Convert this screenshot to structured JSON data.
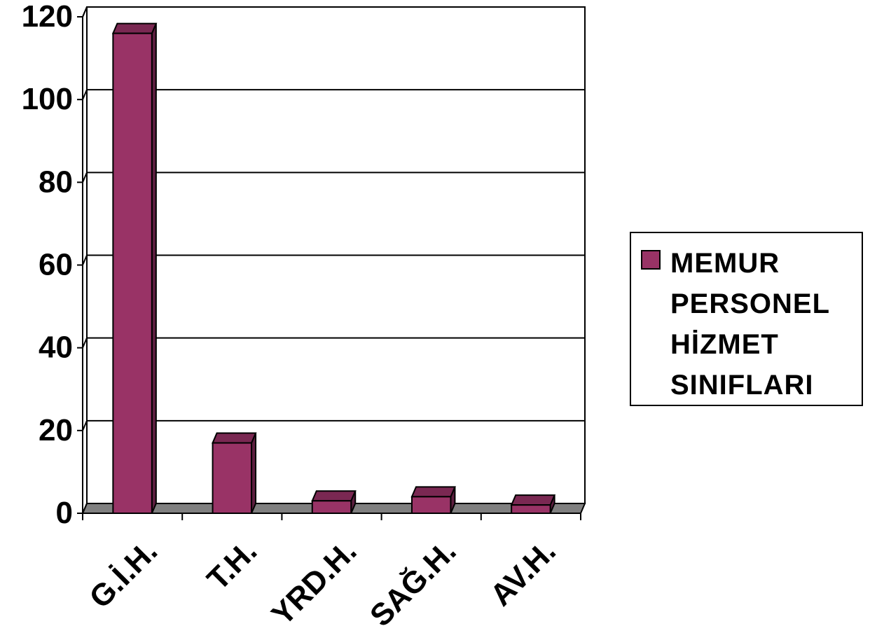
{
  "chart_data": {
    "type": "bar",
    "categories": [
      "G.İ.H.",
      "T.H.",
      "YRD.H.",
      "SAĞ.H.",
      "AV.H."
    ],
    "series": [
      {
        "name": "MEMUR PERSONEL HİZMET SINIFLARI",
        "values": [
          116,
          17,
          3,
          4,
          2
        ]
      }
    ],
    "title": "",
    "xlabel": "",
    "ylabel": "",
    "ylim": [
      0,
      120
    ],
    "yticks": [
      "0",
      "20",
      "40",
      "60",
      "80",
      "100",
      "120"
    ],
    "grid": true,
    "legend": "right",
    "colors": {
      "bar_front": "#993366",
      "bar_top": "#7a2852",
      "bar_side": "#5e1f40",
      "floor": "#808080"
    }
  },
  "legend": {
    "label": "MEMUR PERSONEL HİZMET SINIFLARI"
  }
}
